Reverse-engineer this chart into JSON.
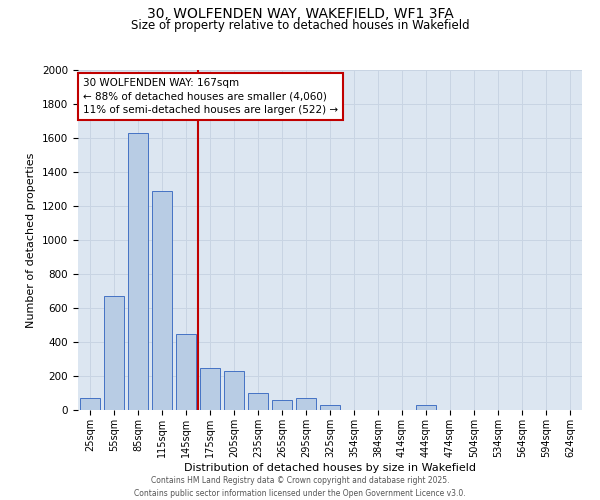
{
  "title_line1": "30, WOLFENDEN WAY, WAKEFIELD, WF1 3FA",
  "title_line2": "Size of property relative to detached houses in Wakefield",
  "xlabel": "Distribution of detached houses by size in Wakefield",
  "ylabel": "Number of detached properties",
  "categories": [
    "25sqm",
    "55sqm",
    "85sqm",
    "115sqm",
    "145sqm",
    "175sqm",
    "205sqm",
    "235sqm",
    "265sqm",
    "295sqm",
    "325sqm",
    "354sqm",
    "384sqm",
    "414sqm",
    "444sqm",
    "474sqm",
    "504sqm",
    "534sqm",
    "564sqm",
    "594sqm",
    "624sqm"
  ],
  "values": [
    70,
    670,
    1630,
    1290,
    450,
    250,
    230,
    100,
    60,
    70,
    30,
    0,
    0,
    0,
    30,
    0,
    0,
    0,
    0,
    0,
    0
  ],
  "bar_color": "#b8cce4",
  "bar_edge_color": "#4472c4",
  "grid_color": "#c8d4e3",
  "background_color": "#dce6f1",
  "annotation_text": "30 WOLFENDEN WAY: 167sqm\n← 88% of detached houses are smaller (4,060)\n11% of semi-detached houses are larger (522) →",
  "vline_color": "#c00000",
  "annotation_box_edgecolor": "#c00000",
  "ylim": [
    0,
    2000
  ],
  "yticks": [
    0,
    200,
    400,
    600,
    800,
    1000,
    1200,
    1400,
    1600,
    1800,
    2000
  ],
  "footer_line1": "Contains HM Land Registry data © Crown copyright and database right 2025.",
  "footer_line2": "Contains public sector information licensed under the Open Government Licence v3.0."
}
